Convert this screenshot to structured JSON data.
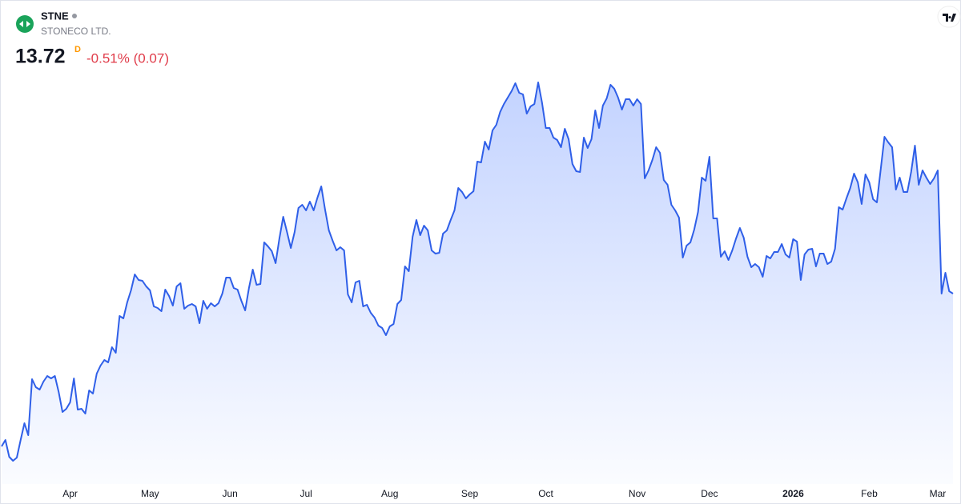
{
  "header": {
    "symbol": "STNE",
    "name": "STONECO LTD.",
    "price": "13.72",
    "interval": "D",
    "change": "-0.51% (0.07)"
  },
  "chart_data": {
    "type": "area",
    "color": "#2f5fe8",
    "categories": [
      null,
      null,
      null,
      null,
      null,
      null,
      null,
      null,
      null,
      null,
      null,
      null,
      null,
      null,
      null,
      null,
      null,
      null,
      "Apr",
      null,
      null,
      null,
      null,
      null,
      null,
      null,
      null,
      null,
      null,
      null,
      null,
      null,
      null,
      null,
      null,
      null,
      null,
      null,
      null,
      "May",
      null,
      null,
      null,
      null,
      null,
      null,
      null,
      null,
      null,
      null,
      null,
      null,
      null,
      null,
      null,
      null,
      null,
      null,
      null,
      null,
      "Jun",
      null,
      null,
      null,
      null,
      null,
      null,
      null,
      null,
      null,
      null,
      null,
      null,
      null,
      null,
      null,
      null,
      null,
      null,
      null,
      "Jul",
      null,
      null,
      null,
      null,
      null,
      null,
      null,
      null,
      null,
      null,
      null,
      null,
      null,
      null,
      null,
      null,
      null,
      null,
      null,
      null,
      null,
      "Aug",
      null,
      null,
      null,
      null,
      null,
      null,
      null,
      null,
      null,
      null,
      null,
      null,
      null,
      null,
      null,
      null,
      null,
      null,
      null,
      null,
      "Sep",
      null,
      null,
      null,
      null,
      null,
      null,
      null,
      null,
      null,
      null,
      null,
      null,
      null,
      null,
      null,
      null,
      null,
      null,
      null,
      "Oct",
      null,
      null,
      null,
      null,
      null,
      null,
      null,
      null,
      null,
      null,
      null,
      null,
      null,
      null,
      null,
      null,
      null,
      null,
      null,
      null,
      null,
      null,
      null,
      "Nov",
      null,
      null,
      null,
      null,
      null,
      null,
      null,
      null,
      null,
      null,
      null,
      null,
      null,
      null,
      null,
      null,
      null,
      null,
      "Dec",
      null,
      null,
      null,
      null,
      null,
      null,
      null,
      null,
      null,
      null,
      null,
      null,
      null,
      null,
      null,
      null,
      null,
      null,
      null,
      null,
      null,
      "2026",
      null,
      null,
      null,
      null,
      null,
      null,
      null,
      null,
      null,
      null,
      null,
      null,
      null,
      null,
      null,
      null,
      null,
      null,
      null,
      "Feb",
      null,
      null,
      null,
      null,
      null,
      null,
      null,
      null,
      null,
      null,
      null,
      null,
      null,
      null,
      null,
      null,
      null,
      "Mar",
      null,
      null,
      null,
      null
    ],
    "values": [
      9.9,
      10.06,
      9.64,
      9.54,
      9.62,
      10.06,
      10.48,
      10.18,
      11.58,
      11.38,
      11.32,
      11.52,
      11.66,
      11.6,
      11.66,
      11.26,
      10.76,
      10.84,
      11.0,
      11.6,
      10.82,
      10.84,
      10.72,
      11.3,
      11.22,
      11.72,
      11.92,
      12.06,
      12.0,
      12.38,
      12.24,
      13.16,
      13.1,
      13.5,
      13.8,
      14.2,
      14.06,
      14.04,
      13.9,
      13.8,
      13.4,
      13.36,
      13.28,
      13.82,
      13.66,
      13.42,
      13.9,
      13.98,
      13.34,
      13.42,
      13.46,
      13.4,
      12.98,
      13.54,
      13.34,
      13.48,
      13.4,
      13.48,
      13.72,
      14.12,
      14.12,
      13.86,
      13.82,
      13.54,
      13.3,
      13.86,
      14.32,
      13.94,
      13.96,
      15.0,
      14.9,
      14.78,
      14.48,
      15.1,
      15.64,
      15.26,
      14.86,
      15.26,
      15.86,
      15.94,
      15.8,
      16.02,
      15.8,
      16.12,
      16.4,
      15.82,
      15.3,
      15.04,
      14.8,
      14.88,
      14.8,
      13.7,
      13.5,
      14.0,
      14.04,
      13.4,
      13.44,
      13.24,
      13.12,
      12.92,
      12.86,
      12.68,
      12.9,
      12.96,
      13.46,
      13.56,
      14.4,
      14.28,
      15.14,
      15.56,
      15.18,
      15.42,
      15.3,
      14.8,
      14.72,
      14.74,
      15.22,
      15.3,
      15.56,
      15.8,
      16.36,
      16.26,
      16.1,
      16.2,
      16.28,
      17.02,
      17.0,
      17.52,
      17.32,
      17.8,
      17.94,
      18.26,
      18.46,
      18.62,
      18.78,
      18.98,
      18.74,
      18.7,
      18.22,
      18.4,
      18.46,
      19.0,
      18.5,
      17.86,
      17.86,
      17.62,
      17.56,
      17.38,
      17.84,
      17.58,
      16.96,
      16.78,
      16.76,
      17.62,
      17.36,
      17.58,
      18.3,
      17.86,
      18.42,
      18.6,
      18.94,
      18.84,
      18.62,
      18.32,
      18.58,
      18.58,
      18.42,
      18.58,
      18.46,
      16.6,
      16.8,
      17.06,
      17.38,
      17.24,
      16.56,
      16.44,
      15.94,
      15.8,
      15.62,
      14.62,
      14.92,
      15.0,
      15.32,
      15.76,
      16.62,
      16.54,
      17.14,
      15.6,
      15.6,
      14.64,
      14.78,
      14.56,
      14.8,
      15.1,
      15.36,
      15.12,
      14.64,
      14.38,
      14.46,
      14.38,
      14.14,
      14.66,
      14.6,
      14.76,
      14.76,
      14.96,
      14.7,
      14.62,
      15.08,
      15.02,
      14.06,
      14.7,
      14.82,
      14.84,
      14.4,
      14.72,
      14.72,
      14.46,
      14.52,
      14.84,
      15.88,
      15.82,
      16.1,
      16.36,
      16.72,
      16.5,
      15.96,
      16.7,
      16.5,
      16.08,
      16.0,
      16.82,
      17.64,
      17.5,
      17.38,
      16.32,
      16.62,
      16.26,
      16.26,
      16.76,
      17.42,
      16.44,
      16.8,
      16.62,
      16.46,
      16.6,
      16.8,
      13.72,
      14.24,
      13.78,
      13.72
    ]
  }
}
